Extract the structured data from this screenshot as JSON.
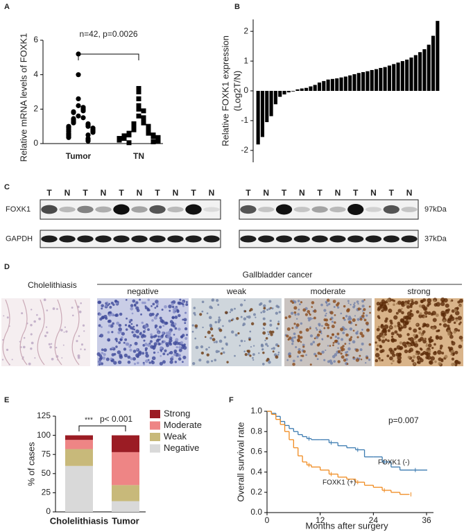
{
  "chart_data": [
    {
      "panel": "A",
      "type": "strip",
      "ylabel": "Relative mRNA levels of FOXK1",
      "annotation": "n=42, p=0.0026",
      "categories": [
        "Tumor",
        "TN"
      ],
      "color": "#000000",
      "series": [
        {
          "name": "Tumor",
          "marker": "circle",
          "values": [
            5.2,
            4.0,
            2.6,
            2.2,
            2.1,
            2.0,
            1.9,
            1.85,
            1.8,
            1.6,
            1.5,
            1.45,
            1.4,
            1.3,
            1.25,
            1.2,
            1.15,
            1.1,
            1.05,
            1.0,
            1.0,
            0.95,
            0.9,
            0.9,
            0.85,
            0.8,
            0.8,
            0.75,
            0.7,
            0.7,
            0.65,
            0.6,
            0.55,
            0.5,
            0.5,
            0.45,
            0.4,
            0.35,
            0.3,
            0.25,
            0.2,
            0.15
          ]
        },
        {
          "name": "TN",
          "marker": "square",
          "values": [
            3.2,
            3.0,
            2.6,
            2.2,
            2.0,
            1.9,
            1.6,
            1.5,
            1.4,
            1.3,
            1.2,
            1.15,
            1.1,
            1.0,
            1.0,
            0.9,
            0.85,
            0.8,
            0.75,
            0.7,
            0.65,
            0.6,
            0.6,
            0.55,
            0.5,
            0.5,
            0.45,
            0.45,
            0.4,
            0.4,
            0.35,
            0.35,
            0.3,
            0.3,
            0.3,
            0.25,
            0.25,
            0.2,
            0.2,
            0.15,
            0.1,
            0.05
          ]
        }
      ],
      "ylim": [
        0,
        6
      ],
      "yticks": [
        0,
        2,
        4,
        6
      ]
    },
    {
      "panel": "B",
      "type": "bar",
      "ylabel": [
        "Relative FOXK1 expression",
        "(Log2T/N)"
      ],
      "color": "#000000",
      "values": [
        -1.8,
        -1.55,
        -1.05,
        -0.85,
        -0.45,
        -0.2,
        -0.12,
        -0.05,
        -0.02,
        0.05,
        0.08,
        0.1,
        0.15,
        0.2,
        0.28,
        0.33,
        0.38,
        0.4,
        0.42,
        0.45,
        0.48,
        0.52,
        0.56,
        0.6,
        0.63,
        0.66,
        0.7,
        0.73,
        0.77,
        0.8,
        0.85,
        0.9,
        0.95,
        1.0,
        1.05,
        1.12,
        1.2,
        1.3,
        1.4,
        1.55,
        1.85,
        2.35
      ],
      "ylim": [
        -2.4,
        2.4
      ],
      "yticks": [
        -2,
        -1,
        0,
        1,
        2
      ]
    },
    {
      "panel": "E",
      "type": "stacked_bar",
      "ylabel": "% of cases",
      "annotation": [
        "***",
        "p< 0.001"
      ],
      "categories": [
        "Cholelithiasis",
        "Tumor"
      ],
      "series": [
        {
          "name": "Negative",
          "color": "#d9d9d9",
          "values": [
            60,
            14
          ]
        },
        {
          "name": "Weak",
          "color": "#c8b97a",
          "values": [
            22,
            21
          ]
        },
        {
          "name": "Moderate",
          "color": "#ee8585",
          "values": [
            12,
            43
          ]
        },
        {
          "name": "Strong",
          "color": "#9b1c24",
          "values": [
            6,
            22
          ]
        }
      ],
      "ylim": [
        0,
        125
      ],
      "yticks": [
        0,
        25,
        50,
        75,
        100,
        125
      ]
    },
    {
      "panel": "F",
      "type": "step",
      "xlabel": "Months after surgery",
      "ylabel": "Overall survival rate",
      "annotation": "p=0.007",
      "series": [
        {
          "name": "FOXK1 (-)",
          "color": "#3a7ab0",
          "x": [
            0,
            1,
            2,
            3,
            4,
            5,
            6,
            7,
            8,
            9,
            10,
            12,
            14,
            16,
            18,
            20,
            22,
            24,
            26,
            28,
            30,
            33,
            36
          ],
          "y": [
            1.0,
            0.98,
            0.95,
            0.9,
            0.86,
            0.83,
            0.8,
            0.77,
            0.75,
            0.73,
            0.72,
            0.72,
            0.69,
            0.66,
            0.64,
            0.62,
            0.55,
            0.55,
            0.5,
            0.45,
            0.42,
            0.42,
            0.42
          ]
        },
        {
          "name": "FOXK1 (+)",
          "color": "#f08a1e",
          "x": [
            0,
            1,
            2,
            3,
            4,
            5,
            6,
            7,
            8,
            9,
            10,
            12,
            14,
            16,
            18,
            20,
            22,
            24,
            26,
            28,
            30,
            32
          ],
          "y": [
            1.0,
            0.97,
            0.92,
            0.87,
            0.8,
            0.72,
            0.64,
            0.56,
            0.5,
            0.47,
            0.45,
            0.42,
            0.38,
            0.35,
            0.33,
            0.3,
            0.27,
            0.25,
            0.22,
            0.2,
            0.18,
            0.18
          ]
        }
      ],
      "xlim": [
        0,
        36
      ],
      "xticks": [
        0,
        12,
        24,
        36
      ],
      "ylim": [
        0,
        1
      ],
      "yticks": [
        {
          "value": 0,
          "label": "0.0"
        },
        0.2,
        0.4,
        0.6,
        0.8,
        {
          "value": 1,
          "label": "1.0"
        }
      ]
    }
  ],
  "blots": {
    "panel": "C",
    "rows": [
      "FOXK1",
      "GAPDH"
    ],
    "sizes": [
      "97kDa",
      "37kDa"
    ],
    "lanes": [
      [
        "T",
        "N",
        "T",
        "N",
        "T",
        "N",
        "T",
        "N",
        "T",
        "N"
      ],
      [
        "T",
        "N",
        "T",
        "N",
        "T",
        "N",
        "T",
        "N",
        "T",
        "N"
      ]
    ]
  },
  "histology": {
    "panel": "D",
    "control": "Cholelithiasis",
    "group": "Gallbladder cancer",
    "grades": [
      "negative",
      "weak",
      "moderate",
      "strong"
    ]
  }
}
